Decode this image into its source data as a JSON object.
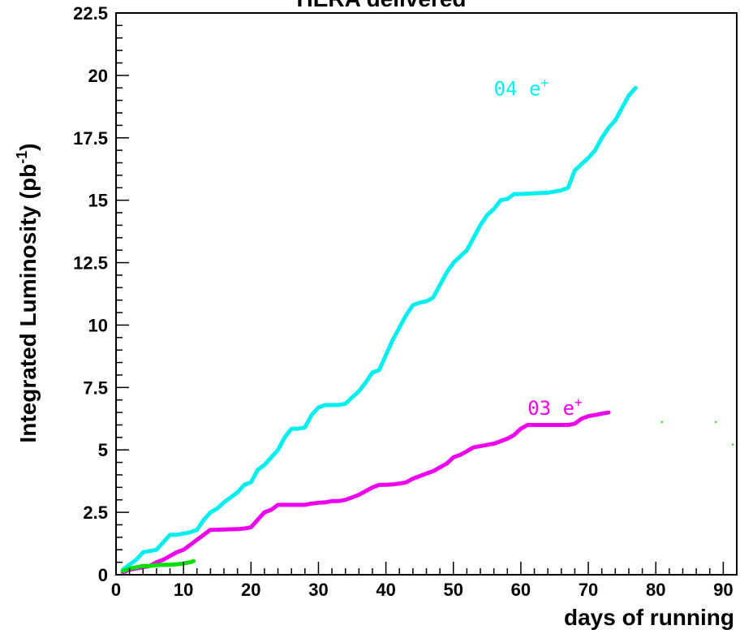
{
  "chart_data": {
    "type": "line",
    "title": "HERA delivered",
    "xlabel": "days of running",
    "ylabel": "Integrated Luminosity (pb",
    "ylabel_sup": "-1",
    "ylabel_close": ")",
    "xlim": [
      0,
      92
    ],
    "ylim": [
      0,
      22.5
    ],
    "x_ticks": [
      0,
      10,
      20,
      30,
      40,
      50,
      60,
      70,
      80,
      90
    ],
    "x_tick_labels": [
      "0",
      "10",
      "20",
      "30",
      "40",
      "50",
      "60",
      "70",
      "80",
      "90"
    ],
    "y_ticks": [
      0,
      2.5,
      5,
      7.5,
      10,
      12.5,
      15,
      17.5,
      20,
      22.5
    ],
    "y_tick_labels": [
      "0",
      "2.5",
      "5",
      "7.5",
      "10",
      "12.5",
      "15",
      "17.5",
      "20",
      "22.5"
    ],
    "grid": false,
    "series": [
      {
        "name": "04 e+",
        "label_text": "04 e",
        "label_sup": "+",
        "label_at": [
          56,
          19.2
        ],
        "color": "#00f0f0",
        "x": [
          1,
          2,
          3,
          4,
          5,
          6,
          7,
          8,
          9,
          10,
          11,
          12,
          13,
          14,
          15,
          16,
          17,
          18,
          19,
          20,
          21,
          22,
          23,
          24,
          25,
          26,
          27,
          28,
          29,
          30,
          31,
          32,
          33,
          34,
          35,
          36,
          37,
          38,
          39,
          40,
          41,
          42,
          43,
          44,
          45,
          46,
          47,
          48,
          49,
          50,
          51,
          52,
          53,
          54,
          55,
          56,
          57,
          58,
          59,
          60,
          62,
          64,
          66,
          67,
          68,
          69,
          70,
          71,
          72,
          73,
          74,
          75,
          76,
          77
        ],
        "y": [
          0.2,
          0.4,
          0.6,
          0.9,
          0.95,
          1.0,
          1.3,
          1.6,
          1.6,
          1.65,
          1.7,
          1.8,
          2.2,
          2.5,
          2.65,
          2.9,
          3.1,
          3.3,
          3.6,
          3.7,
          4.2,
          4.4,
          4.7,
          5.0,
          5.5,
          5.85,
          5.85,
          5.9,
          6.4,
          6.7,
          6.8,
          6.8,
          6.8,
          6.85,
          7.1,
          7.35,
          7.7,
          8.1,
          8.2,
          8.8,
          9.4,
          9.9,
          10.4,
          10.8,
          10.9,
          10.95,
          11.1,
          11.6,
          12.1,
          12.5,
          12.75,
          13.0,
          13.5,
          14.0,
          14.4,
          14.65,
          15.0,
          15.05,
          15.25,
          15.25,
          15.28,
          15.3,
          15.4,
          15.5,
          16.2,
          16.45,
          16.7,
          17.0,
          17.5,
          17.9,
          18.2,
          18.7,
          19.2,
          19.5
        ]
      },
      {
        "name": "03 e+",
        "label_text": "03 e",
        "label_sup": "+",
        "label_at": [
          61,
          6.4
        ],
        "color": "#f000f0",
        "x": [
          1,
          2,
          3,
          4,
          5,
          6,
          7,
          8,
          9,
          10,
          11,
          12,
          13,
          14,
          15,
          16,
          17,
          18,
          19,
          20,
          21,
          22,
          23,
          24,
          25,
          26,
          27,
          28,
          29,
          30,
          31,
          32,
          33,
          34,
          35,
          36,
          37,
          38,
          39,
          40,
          41,
          42,
          43,
          44,
          45,
          46,
          47,
          48,
          49,
          50,
          51,
          52,
          53,
          54,
          55,
          56,
          57,
          58,
          59,
          60,
          61,
          62,
          64,
          66,
          67,
          68,
          69,
          70,
          71,
          72,
          73
        ],
        "y": [
          0.1,
          0.2,
          0.25,
          0.3,
          0.35,
          0.5,
          0.6,
          0.75,
          0.9,
          1.0,
          1.2,
          1.4,
          1.6,
          1.8,
          1.8,
          1.81,
          1.82,
          1.83,
          1.85,
          1.9,
          2.2,
          2.5,
          2.6,
          2.8,
          2.8,
          2.8,
          2.8,
          2.8,
          2.85,
          2.88,
          2.9,
          2.95,
          2.95,
          3.0,
          3.1,
          3.2,
          3.35,
          3.5,
          3.6,
          3.6,
          3.62,
          3.65,
          3.7,
          3.85,
          3.95,
          4.05,
          4.15,
          4.3,
          4.45,
          4.7,
          4.8,
          4.95,
          5.1,
          5.15,
          5.2,
          5.25,
          5.35,
          5.45,
          5.6,
          5.85,
          6.0,
          6.0,
          6.0,
          6.0,
          6.0,
          6.05,
          6.25,
          6.35,
          6.4,
          6.45,
          6.5
        ]
      },
      {
        "name": "",
        "color": "#00e000",
        "x": [
          1,
          2,
          3,
          4,
          5,
          6,
          7,
          8,
          9,
          10,
          11,
          11.5
        ],
        "y": [
          0.15,
          0.25,
          0.3,
          0.35,
          0.35,
          0.38,
          0.4,
          0.4,
          0.42,
          0.45,
          0.5,
          0.55
        ]
      }
    ],
    "stray_marks": [
      {
        "x": 80.8,
        "y": 6.1,
        "color": "#00e000"
      },
      {
        "x": 88.8,
        "y": 6.1,
        "color": "#00e000"
      },
      {
        "x": 91.3,
        "y": 5.2,
        "color": "#00e000"
      }
    ]
  }
}
